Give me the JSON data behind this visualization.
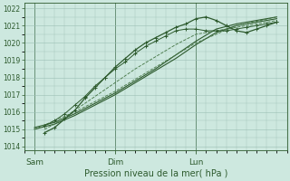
{
  "background_color": "#cde8df",
  "plot_bg_color": "#cde8df",
  "grid_color": "#9bbfb4",
  "line_color_dark": "#2d5a2d",
  "line_color_med": "#3d6b3d",
  "xlabel": "Pression niveau de la mer( hPa )",
  "xlabel_fontsize": 7,
  "ylim": [
    1013.8,
    1022.3
  ],
  "xlim": [
    -3,
    75
  ],
  "yticks": [
    1014,
    1015,
    1016,
    1017,
    1018,
    1019,
    1020,
    1021,
    1022
  ],
  "ytick_fontsize": 5.5,
  "day_positions": [
    0,
    24,
    48
  ],
  "day_labels": [
    "Sam",
    "Dim",
    "Lun"
  ],
  "day_fontsize": 6.5,
  "series": [
    {
      "x": [
        0,
        6,
        12,
        18,
        24,
        30,
        36,
        42,
        48,
        54,
        60,
        66,
        72
      ],
      "y": [
        1015.1,
        1015.4,
        1015.9,
        1016.5,
        1017.1,
        1017.8,
        1018.5,
        1019.3,
        1020.1,
        1020.8,
        1021.1,
        1021.3,
        1021.5
      ],
      "style": "-",
      "lw": 0.8,
      "marker": null,
      "color": "#2d5a2d"
    },
    {
      "x": [
        0,
        6,
        12,
        18,
        24,
        30,
        36,
        42,
        48,
        54,
        60,
        66,
        72
      ],
      "y": [
        1015.0,
        1015.3,
        1015.8,
        1016.4,
        1017.0,
        1017.7,
        1018.4,
        1019.1,
        1019.9,
        1020.6,
        1021.0,
        1021.2,
        1021.4
      ],
      "style": "-",
      "lw": 0.8,
      "marker": null,
      "color": "#2d5a2d"
    },
    {
      "x": [
        3,
        6,
        9,
        12,
        15,
        18,
        21,
        24,
        27,
        30,
        33,
        36,
        39,
        42,
        45,
        48,
        51,
        54,
        57,
        60,
        63,
        66,
        69,
        72
      ],
      "y": [
        1015.2,
        1015.5,
        1015.9,
        1016.4,
        1016.9,
        1017.5,
        1018.0,
        1018.5,
        1018.9,
        1019.4,
        1019.8,
        1020.1,
        1020.4,
        1020.7,
        1020.8,
        1020.8,
        1020.7,
        1020.7,
        1020.7,
        1020.8,
        1020.9,
        1021.0,
        1021.1,
        1021.2
      ],
      "style": "-",
      "lw": 0.7,
      "marker": "+",
      "color": "#2d5a2d"
    },
    {
      "x": [
        3,
        6,
        9,
        12,
        15,
        18,
        21,
        24,
        27,
        30,
        33,
        36,
        39,
        42,
        45,
        48,
        51,
        54,
        57,
        60,
        63,
        66,
        69,
        72
      ],
      "y": [
        1014.8,
        1015.1,
        1015.6,
        1016.1,
        1016.8,
        1017.4,
        1018.0,
        1018.6,
        1019.1,
        1019.6,
        1020.0,
        1020.3,
        1020.6,
        1020.9,
        1021.1,
        1021.4,
        1021.5,
        1021.3,
        1021.0,
        1020.7,
        1020.6,
        1020.8,
        1021.0,
        1021.2
      ],
      "style": "-",
      "lw": 0.9,
      "marker": "+",
      "color": "#2d5a2d"
    },
    {
      "x": [
        3,
        6,
        9,
        12,
        15,
        18,
        21,
        24,
        30,
        36,
        42,
        48,
        51,
        54,
        57,
        60,
        66,
        72
      ],
      "y": [
        1015.0,
        1015.3,
        1015.7,
        1016.1,
        1016.5,
        1016.9,
        1017.3,
        1017.7,
        1018.5,
        1019.2,
        1019.9,
        1020.5,
        1020.6,
        1020.7,
        1020.8,
        1020.9,
        1021.1,
        1021.3
      ],
      "style": "--",
      "lw": 0.65,
      "marker": null,
      "color": "#4a7a4a"
    },
    {
      "x": [
        0,
        12,
        24,
        36,
        48,
        60,
        72
      ],
      "y": [
        1015.0,
        1016.0,
        1017.2,
        1018.6,
        1020.0,
        1021.0,
        1021.5
      ],
      "style": "--",
      "lw": 0.65,
      "marker": null,
      "color": "#4a7a4a"
    }
  ]
}
